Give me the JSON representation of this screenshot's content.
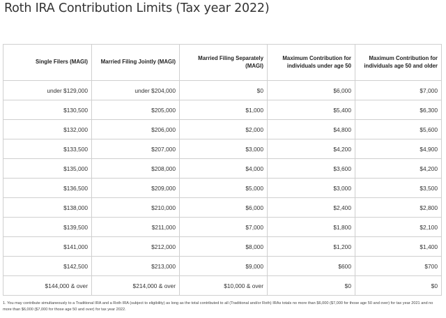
{
  "title": "Roth IRA Contribution Limits (Tax year 2022)",
  "table": {
    "headers": [
      "Single Filers (MAGI)",
      "Married Filing Jointly (MAGI)",
      "Married Filing Separately (MAGI)",
      "Maximum Contribution for individuals under age 50",
      "Maximum Contribution for individuals age 50 and older"
    ],
    "rows": [
      [
        "under $129,000",
        "under $204,000",
        "$0",
        "$6,000",
        "$7,000"
      ],
      [
        "$130,500",
        "$205,000",
        "$1,000",
        "$5,400",
        "$6,300"
      ],
      [
        "$132,000",
        "$206,000",
        "$2,000",
        "$4,800",
        "$5,600"
      ],
      [
        "$133,500",
        "$207,000",
        "$3,000",
        "$4,200",
        "$4,900"
      ],
      [
        "$135,000",
        "$208,000",
        "$4,000",
        "$3,600",
        "$4,200"
      ],
      [
        "$136,500",
        "$209,000",
        "$5,000",
        "$3,000",
        "$3,500"
      ],
      [
        "$138,000",
        "$210,000",
        "$6,000",
        "$2,400",
        "$2,800"
      ],
      [
        "$139,500",
        "$211,000",
        "$7,000",
        "$1,800",
        "$2,100"
      ],
      [
        "$141,000",
        "$212,000",
        "$8,000",
        "$1,200",
        "$1,400"
      ],
      [
        "$142,500",
        "$213,000",
        "$9,000",
        "$600",
        "$700"
      ],
      [
        "$144,000 & over",
        "$214,000 & over",
        "$10,000 & over",
        "$0",
        "$0"
      ]
    ]
  },
  "footnote": "1. You may contribute simultaneously to a Traditional IRA and a Roth IRA (subject to eligibility) as long as the total contributed to all (Traditional and/or Roth) IRAs totals no more than $6,000 ($7,000 for those age 50 and over) for tax year 2021 and no more than $6,000 ($7,000 for those age 50 and over) for tax year 2022."
}
